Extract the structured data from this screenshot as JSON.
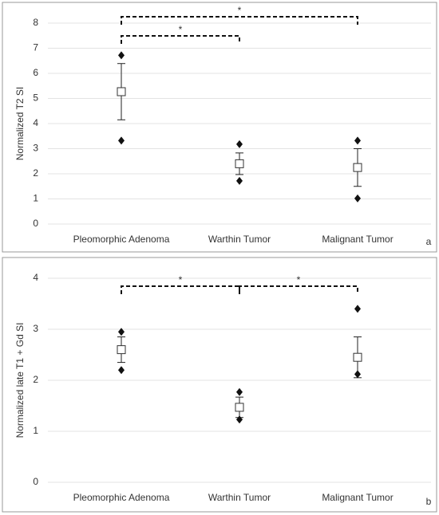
{
  "chart_data": [
    {
      "type": "errorbar",
      "ylabel": "Normalized T2 SI",
      "panel_label": "a",
      "categories": [
        "Pleomorphic  Adenoma",
        "Warthin Tumor",
        "Malignant Tumor"
      ],
      "mean": [
        5.27,
        2.4,
        2.25
      ],
      "error": [
        1.12,
        0.43,
        0.75
      ],
      "max": [
        6.72,
        3.18,
        3.32
      ],
      "min": [
        3.32,
        1.72,
        1.02
      ],
      "ylim": [
        0,
        8
      ],
      "yticks": [
        0,
        1,
        2,
        3,
        4,
        5,
        6,
        7,
        8
      ],
      "grid": true,
      "comparisons": [
        {
          "from": 0,
          "to": 2,
          "label": "*"
        },
        {
          "from": 0,
          "to": 1,
          "label": "*"
        }
      ]
    },
    {
      "type": "errorbar",
      "ylabel": "Normalized late T1 + Gd SI",
      "panel_label": "b",
      "categories": [
        "Pleomorphic Adenoma",
        "Warthin Tumor",
        "Malignant Tumor"
      ],
      "mean": [
        2.6,
        1.47,
        2.45
      ],
      "error": [
        0.25,
        0.2,
        0.4
      ],
      "max": [
        2.95,
        1.77,
        3.4
      ],
      "min": [
        2.2,
        1.23,
        2.12
      ],
      "ylim": [
        0,
        4
      ],
      "yticks": [
        0,
        1,
        2,
        3,
        4
      ],
      "grid": true,
      "comparisons": [
        {
          "from": 0,
          "to": 1,
          "label": "*"
        },
        {
          "from": 1,
          "to": 2,
          "label": "*"
        }
      ]
    }
  ]
}
